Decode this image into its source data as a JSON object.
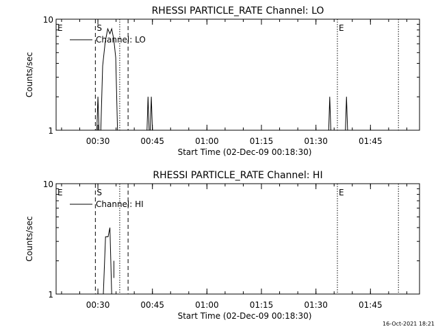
{
  "footer": {
    "timestamp": "16-Oct-2021 18:21"
  },
  "chart_data": [
    {
      "type": "line",
      "title": "RHESSI PARTICLE_RATE Channel: LO",
      "xlabel": "Start Time (02-Dec-09 00:18:30)",
      "ylabel": "Counts/sec",
      "x_unit": "minutes after 00:18:30",
      "xlim": [
        0,
        100
      ],
      "ylim": [
        1,
        10
      ],
      "y_scale": "log",
      "x_ticks": [
        {
          "value": 11.5,
          "label": "00:30"
        },
        {
          "value": 26.5,
          "label": "00:45"
        },
        {
          "value": 41.5,
          "label": "01:00"
        },
        {
          "value": 56.5,
          "label": "01:15"
        },
        {
          "value": 71.5,
          "label": "01:30"
        },
        {
          "value": 86.5,
          "label": "01:45"
        }
      ],
      "y_ticks": [
        {
          "value": 1,
          "label": "1"
        },
        {
          "value": 10,
          "label": "10"
        }
      ],
      "markers": [
        {
          "x": 0,
          "label": "E",
          "style": "solid"
        },
        {
          "x": 10.8,
          "label": "S",
          "style": "dashed"
        },
        {
          "x": 17.5,
          "label": "",
          "style": "dotted"
        },
        {
          "x": 19.8,
          "label": "",
          "style": "dashed"
        },
        {
          "x": 77.4,
          "label": "E",
          "style": "dotted"
        },
        {
          "x": 94.2,
          "label": "",
          "style": "dotted"
        }
      ],
      "legend": {
        "label": "Channel: LO",
        "position": "top-left"
      },
      "series": [
        {
          "name": "Channel: LO",
          "segments": [
            {
              "x": [
                11.2,
                11.5,
                11.8
              ],
              "y": [
                1,
                2,
                1
              ]
            },
            {
              "x": [
                12.3,
                12.8,
                13.5,
                14.2,
                14.8,
                15.3,
                15.9,
                16.4,
                16.9
              ],
              "y": [
                1,
                3.8,
                6.2,
                8.2,
                7.4,
                8.2,
                6.5,
                4.5,
                1
              ]
            },
            {
              "x": [
                17.1,
                17.1
              ],
              "y": [
                4.2,
                4.2
              ]
            },
            {
              "x": [
                25.0,
                25.3,
                25.6,
                25.9,
                26.2,
                26.5
              ],
              "y": [
                1,
                2,
                1,
                1,
                2,
                1
              ]
            },
            {
              "x": [
                75.0,
                75.3,
                75.6
              ],
              "y": [
                1,
                2,
                1
              ]
            },
            {
              "x": [
                79.6,
                79.9,
                80.2
              ],
              "y": [
                1,
                2,
                1
              ]
            }
          ]
        }
      ]
    },
    {
      "type": "line",
      "title": "RHESSI PARTICLE_RATE Channel: HI",
      "xlabel": "Start Time (02-Dec-09 00:18:30)",
      "ylabel": "Counts/sec",
      "x_unit": "minutes after 00:18:30",
      "xlim": [
        0,
        100
      ],
      "ylim": [
        1,
        10
      ],
      "y_scale": "log",
      "x_ticks": [
        {
          "value": 11.5,
          "label": "00:30"
        },
        {
          "value": 26.5,
          "label": "00:45"
        },
        {
          "value": 41.5,
          "label": "01:00"
        },
        {
          "value": 56.5,
          "label": "01:15"
        },
        {
          "value": 71.5,
          "label": "01:30"
        },
        {
          "value": 86.5,
          "label": "01:45"
        }
      ],
      "y_ticks": [
        {
          "value": 1,
          "label": "1"
        },
        {
          "value": 10,
          "label": "10"
        }
      ],
      "markers": [
        {
          "x": 0,
          "label": "E",
          "style": "solid"
        },
        {
          "x": 10.8,
          "label": "S",
          "style": "dashed"
        },
        {
          "x": 17.5,
          "label": "",
          "style": "dotted"
        },
        {
          "x": 19.8,
          "label": "",
          "style": "dashed"
        },
        {
          "x": 77.4,
          "label": "E",
          "style": "dotted"
        },
        {
          "x": 94.2,
          "label": "",
          "style": "dotted"
        }
      ],
      "legend": {
        "label": "Channel: HI",
        "position": "top-left"
      },
      "series": [
        {
          "name": "Channel: HI",
          "segments": [
            {
              "x": [
                13.0,
                13.6,
                14.3,
                14.8,
                15.3
              ],
              "y": [
                1,
                3.3,
                3.3,
                4.0,
                1
              ]
            },
            {
              "x": [
                15.9,
                15.9
              ],
              "y": [
                2.0,
                1.4
              ]
            }
          ]
        }
      ]
    }
  ]
}
